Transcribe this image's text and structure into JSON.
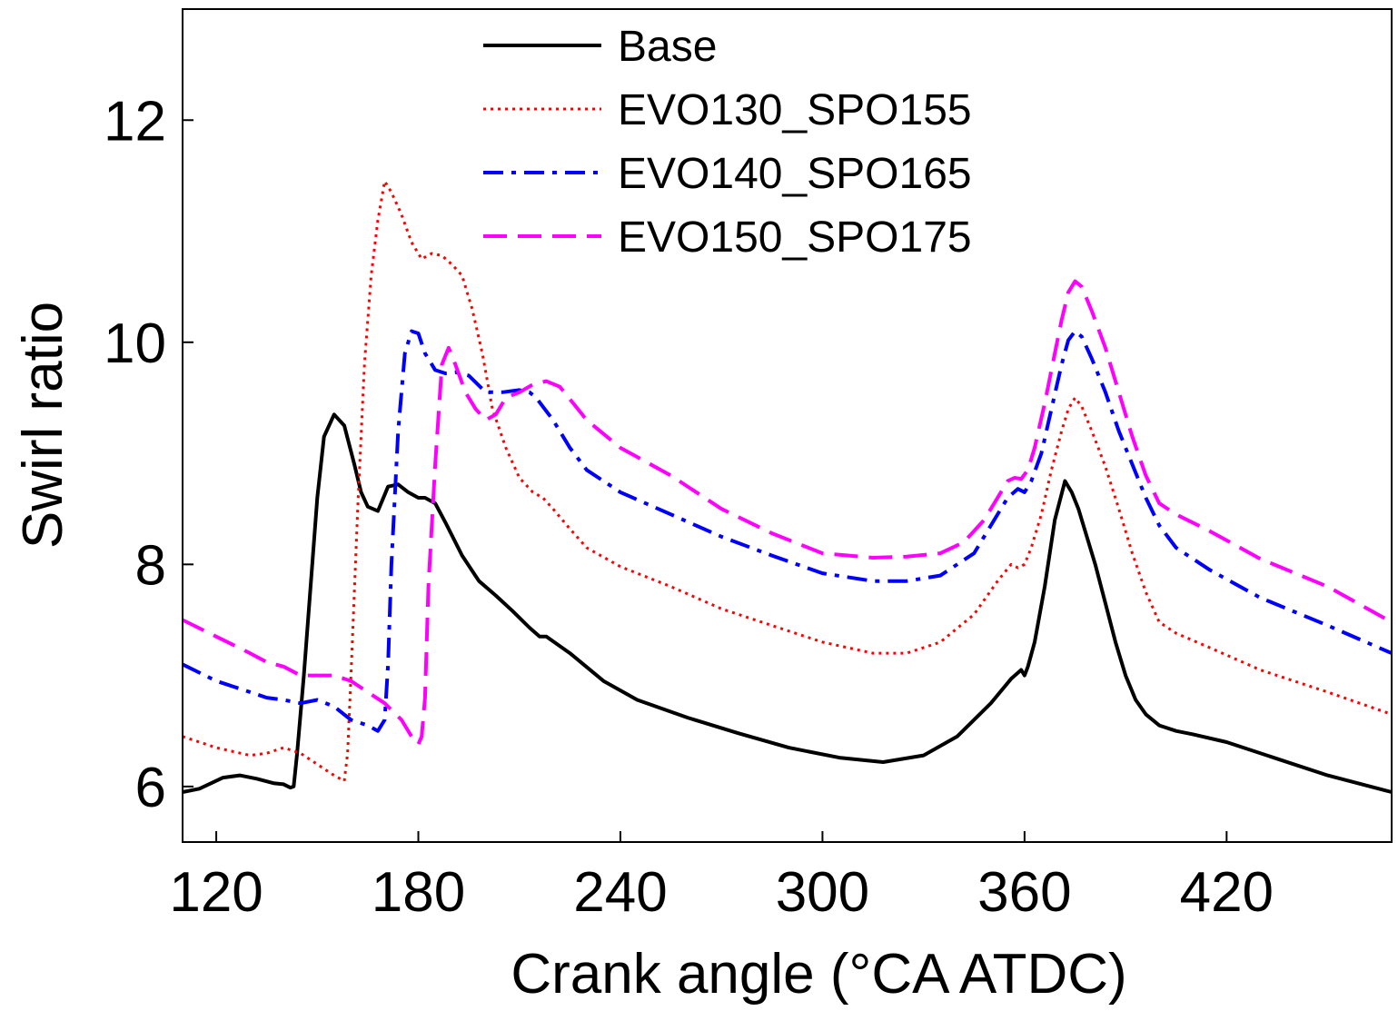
{
  "chart_data": {
    "type": "line",
    "title": "",
    "xlabel": "Crank angle (°CA ATDC)",
    "ylabel": "Swirl ratio",
    "xlim": [
      110,
      469
    ],
    "ylim": [
      5.5,
      13.0
    ],
    "xticks": [
      120,
      180,
      240,
      300,
      360,
      420
    ],
    "yticks": [
      6,
      8,
      10,
      12
    ],
    "grid": false,
    "legend_position": "top-center",
    "series": [
      {
        "name": "Base",
        "color": "#000000",
        "dash": "solid",
        "x": [
          110,
          115,
          122,
          127,
          132,
          137,
          140,
          142,
          143,
          144,
          146,
          148,
          150,
          152,
          155,
          158,
          161,
          163,
          165,
          168,
          171,
          174,
          177,
          180,
          182,
          185,
          188,
          193,
          198,
          203,
          208,
          213,
          216,
          218,
          225,
          235,
          245,
          260,
          275,
          290,
          305,
          318,
          330,
          340,
          350,
          356,
          359,
          360,
          361,
          363,
          366,
          369,
          372,
          374,
          376,
          378,
          381,
          384,
          387,
          390,
          393,
          396,
          400,
          405,
          410,
          420,
          435,
          450,
          469
        ],
        "values": [
          5.95,
          5.98,
          6.08,
          6.1,
          6.07,
          6.03,
          6.02,
          5.99,
          6.0,
          6.3,
          7.0,
          7.8,
          8.6,
          9.15,
          9.35,
          9.25,
          8.9,
          8.65,
          8.52,
          8.48,
          8.7,
          8.72,
          8.65,
          8.6,
          8.6,
          8.55,
          8.38,
          8.08,
          7.85,
          7.72,
          7.58,
          7.43,
          7.35,
          7.35,
          7.2,
          6.95,
          6.78,
          6.62,
          6.48,
          6.35,
          6.26,
          6.22,
          6.28,
          6.45,
          6.75,
          6.97,
          7.05,
          7.0,
          7.08,
          7.3,
          7.8,
          8.4,
          8.75,
          8.65,
          8.5,
          8.3,
          8.0,
          7.65,
          7.3,
          7.0,
          6.78,
          6.65,
          6.55,
          6.5,
          6.47,
          6.4,
          6.25,
          6.1,
          5.95
        ]
      },
      {
        "name": "EVO130_SPO155",
        "color": "#ff0000",
        "dash": "dotted",
        "x": [
          110,
          120,
          130,
          135,
          140,
          145,
          150,
          155,
          158,
          159,
          160,
          162,
          164,
          166,
          168,
          170,
          172,
          175,
          178,
          181,
          184,
          187,
          190,
          193,
          196,
          199,
          202,
          206,
          210,
          214,
          217,
          220,
          225,
          230,
          240,
          255,
          270,
          285,
          300,
          315,
          325,
          335,
          345,
          352,
          356,
          358,
          360,
          362,
          365,
          368,
          371,
          373,
          375,
          377,
          380,
          384,
          388,
          392,
          396,
          400,
          405,
          415,
          430,
          450,
          469
        ],
        "values": [
          6.45,
          6.35,
          6.28,
          6.3,
          6.35,
          6.3,
          6.2,
          6.1,
          6.05,
          6.3,
          7.0,
          8.5,
          9.8,
          10.6,
          11.1,
          11.45,
          11.35,
          11.15,
          10.9,
          10.75,
          10.8,
          10.78,
          10.7,
          10.6,
          10.3,
          9.9,
          9.4,
          9.05,
          8.78,
          8.65,
          8.6,
          8.5,
          8.32,
          8.15,
          7.98,
          7.8,
          7.6,
          7.45,
          7.3,
          7.2,
          7.2,
          7.3,
          7.55,
          7.85,
          8.0,
          7.97,
          8.0,
          8.15,
          8.45,
          8.85,
          9.2,
          9.4,
          9.5,
          9.42,
          9.2,
          8.88,
          8.5,
          8.1,
          7.75,
          7.48,
          7.38,
          7.25,
          7.05,
          6.85,
          6.65
        ]
      },
      {
        "name": "EVO140_SPO165",
        "color": "#0000ff",
        "dash": "dashdot",
        "x": [
          110,
          120,
          130,
          135,
          140,
          145,
          150,
          155,
          160,
          165,
          168,
          170,
          171,
          172,
          174,
          176,
          178,
          180,
          182,
          185,
          188,
          191,
          195,
          200,
          205,
          210,
          213,
          215,
          220,
          225,
          230,
          240,
          255,
          270,
          285,
          300,
          315,
          325,
          335,
          345,
          350,
          355,
          358,
          360,
          362,
          365,
          368,
          371,
          373,
          375,
          377,
          380,
          384,
          388,
          392,
          396,
          400,
          405,
          415,
          430,
          450,
          469
        ],
        "values": [
          7.1,
          6.95,
          6.85,
          6.8,
          6.78,
          6.75,
          6.78,
          6.72,
          6.6,
          6.55,
          6.5,
          6.6,
          7.1,
          8.0,
          9.2,
          9.9,
          10.1,
          10.08,
          9.9,
          9.75,
          9.72,
          9.73,
          9.7,
          9.55,
          9.55,
          9.57,
          9.55,
          9.5,
          9.3,
          9.05,
          8.85,
          8.65,
          8.45,
          8.25,
          8.08,
          7.92,
          7.85,
          7.85,
          7.9,
          8.1,
          8.35,
          8.6,
          8.68,
          8.65,
          8.75,
          9.0,
          9.4,
          9.8,
          10.02,
          10.1,
          10.05,
          9.85,
          9.55,
          9.2,
          8.9,
          8.6,
          8.35,
          8.15,
          7.95,
          7.7,
          7.45,
          7.2
        ]
      },
      {
        "name": "EVO150_SPO175",
        "color": "#ff00ff",
        "dash": "dashed",
        "x": [
          110,
          120,
          130,
          135,
          140,
          145,
          150,
          155,
          160,
          165,
          170,
          175,
          178,
          180,
          181,
          182,
          183,
          185,
          187,
          189,
          191,
          194,
          197,
          200,
          203,
          206,
          210,
          214,
          218,
          222,
          226,
          230,
          240,
          255,
          270,
          285,
          300,
          315,
          325,
          335,
          342,
          348,
          352,
          355,
          357,
          359,
          361,
          363,
          366,
          369,
          371,
          373,
          375,
          377,
          380,
          384,
          388,
          392,
          396,
          400,
          405,
          415,
          430,
          450,
          469
        ],
        "values": [
          7.5,
          7.35,
          7.2,
          7.12,
          7.08,
          7.0,
          7.0,
          7.0,
          6.95,
          6.85,
          6.75,
          6.6,
          6.45,
          6.38,
          6.45,
          6.8,
          7.8,
          8.9,
          9.8,
          9.95,
          9.8,
          9.55,
          9.4,
          9.3,
          9.35,
          9.5,
          9.55,
          9.62,
          9.65,
          9.6,
          9.45,
          9.3,
          9.05,
          8.8,
          8.5,
          8.28,
          8.1,
          8.06,
          8.07,
          8.1,
          8.2,
          8.4,
          8.6,
          8.75,
          8.78,
          8.77,
          8.85,
          9.05,
          9.45,
          9.9,
          10.2,
          10.45,
          10.55,
          10.5,
          10.28,
          9.95,
          9.55,
          9.15,
          8.8,
          8.55,
          8.45,
          8.3,
          8.05,
          7.8,
          7.48
        ]
      }
    ]
  }
}
